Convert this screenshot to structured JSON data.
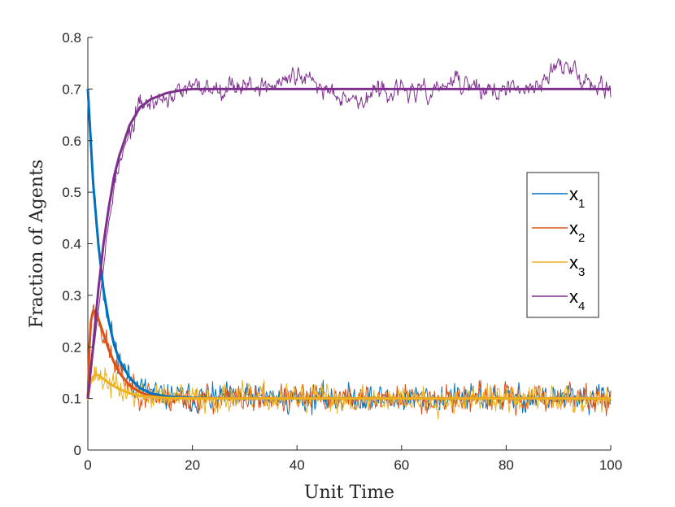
{
  "chart_data": {
    "type": "line",
    "title": "",
    "xlabel": "Unit Time",
    "ylabel": "Fraction of Agents",
    "xlim": [
      0,
      100
    ],
    "ylim": [
      0,
      0.8
    ],
    "xticks": [
      0,
      20,
      40,
      60,
      80,
      100
    ],
    "yticks": [
      0,
      0.1,
      0.2,
      0.3,
      0.4,
      0.5,
      0.6,
      0.7,
      0.8
    ],
    "xtick_labels": [
      "0",
      "20",
      "40",
      "60",
      "80",
      "100"
    ],
    "ytick_labels": [
      "0",
      "0.1",
      "0.2",
      "0.3",
      "0.4",
      "0.5",
      "0.6",
      "0.7",
      "0.8"
    ],
    "grid": false,
    "legend_position": "right",
    "series": [
      {
        "name": "x1",
        "label_base": "x",
        "label_sub": "1",
        "color": "#0072BD",
        "mean_curve": {
          "x": [
            0,
            1,
            2,
            3,
            4,
            5,
            6,
            8,
            10,
            12,
            15,
            20,
            30,
            50,
            100
          ],
          "y": [
            0.7,
            0.52,
            0.4,
            0.31,
            0.25,
            0.205,
            0.175,
            0.14,
            0.12,
            0.11,
            0.104,
            0.101,
            0.1,
            0.1,
            0.1
          ]
        },
        "noisy_mean": 0.1,
        "noisy_spread": 0.012,
        "noisy_seed": 11
      },
      {
        "name": "x2",
        "label_base": "x",
        "label_sub": "2",
        "color": "#D95319",
        "mean_curve": {
          "x": [
            0,
            0.3,
            0.6,
            1,
            1.5,
            2,
            3,
            4,
            5,
            6,
            8,
            10,
            12,
            15,
            20,
            30,
            50,
            100
          ],
          "y": [
            0.1,
            0.2,
            0.25,
            0.27,
            0.268,
            0.255,
            0.225,
            0.195,
            0.17,
            0.15,
            0.125,
            0.112,
            0.105,
            0.101,
            0.1,
            0.1,
            0.1,
            0.1
          ]
        },
        "noisy_mean": 0.1,
        "noisy_spread": 0.012,
        "noisy_seed": 23
      },
      {
        "name": "x3",
        "label_base": "x",
        "label_sub": "3",
        "color": "#EDB120",
        "mean_curve": {
          "x": [
            0,
            0.5,
            1,
            1.5,
            2,
            3,
            4,
            6,
            8,
            10,
            15,
            20,
            30,
            50,
            100
          ],
          "y": [
            0.1,
            0.13,
            0.142,
            0.146,
            0.145,
            0.138,
            0.13,
            0.118,
            0.11,
            0.105,
            0.101,
            0.1,
            0.1,
            0.1,
            0.1
          ]
        },
        "noisy_mean": 0.1,
        "noisy_spread": 0.012,
        "noisy_seed": 37
      },
      {
        "name": "x4",
        "label_base": "x",
        "label_sub": "4",
        "color": "#7E2F8E",
        "mean_curve": {
          "x": [
            0,
            1,
            2,
            3,
            4,
            5,
            6,
            8,
            10,
            12,
            15,
            18,
            20,
            25,
            30,
            50,
            100
          ],
          "y": [
            0.1,
            0.2,
            0.31,
            0.4,
            0.47,
            0.53,
            0.57,
            0.63,
            0.665,
            0.68,
            0.692,
            0.698,
            0.7,
            0.7,
            0.7,
            0.7,
            0.7
          ]
        },
        "noisy_walk": {
          "x": [
            0,
            5,
            10,
            12,
            15,
            20,
            25,
            30,
            35,
            40,
            45,
            50,
            52,
            55,
            60,
            65,
            70,
            75,
            80,
            85,
            88,
            90,
            92,
            95,
            100
          ],
          "y": [
            0.1,
            0.52,
            0.67,
            0.672,
            0.685,
            0.7,
            0.705,
            0.71,
            0.705,
            0.725,
            0.7,
            0.69,
            0.672,
            0.695,
            0.698,
            0.69,
            0.715,
            0.7,
            0.695,
            0.7,
            0.73,
            0.748,
            0.735,
            0.72,
            0.705
          ]
        },
        "noisy_spread": 0.008,
        "noisy_seed": 53
      }
    ]
  }
}
